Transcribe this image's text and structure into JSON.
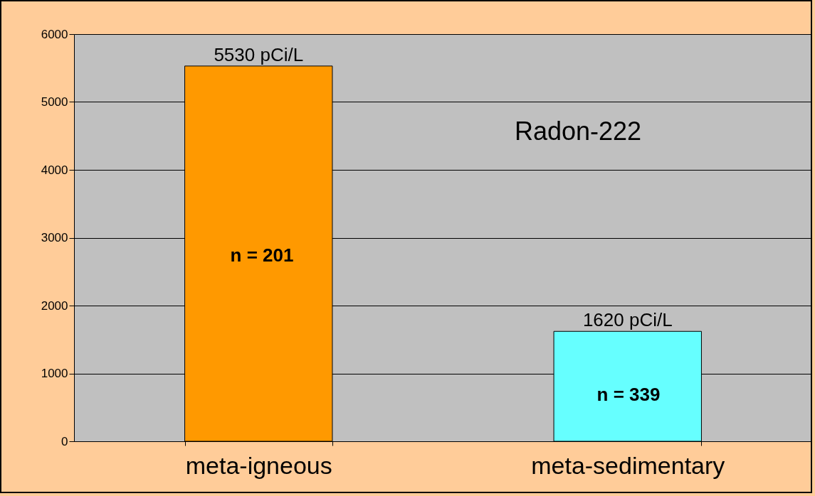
{
  "chart_data": {
    "type": "bar",
    "categories": [
      "meta-igneous",
      "meta-sedimentary"
    ],
    "values": [
      5530,
      1620
    ],
    "colors": [
      "#ff9900",
      "#66ffff"
    ],
    "value_labels": [
      "5530 pCi/L",
      "1620 pCi/L"
    ],
    "ylim": [
      0,
      6000
    ],
    "yticks": [
      0,
      1000,
      2000,
      3000,
      4000,
      5000,
      6000
    ],
    "grid": "y",
    "legend": false,
    "annotations": [
      "n = 201",
      "n = 339",
      "Radon-222"
    ]
  }
}
